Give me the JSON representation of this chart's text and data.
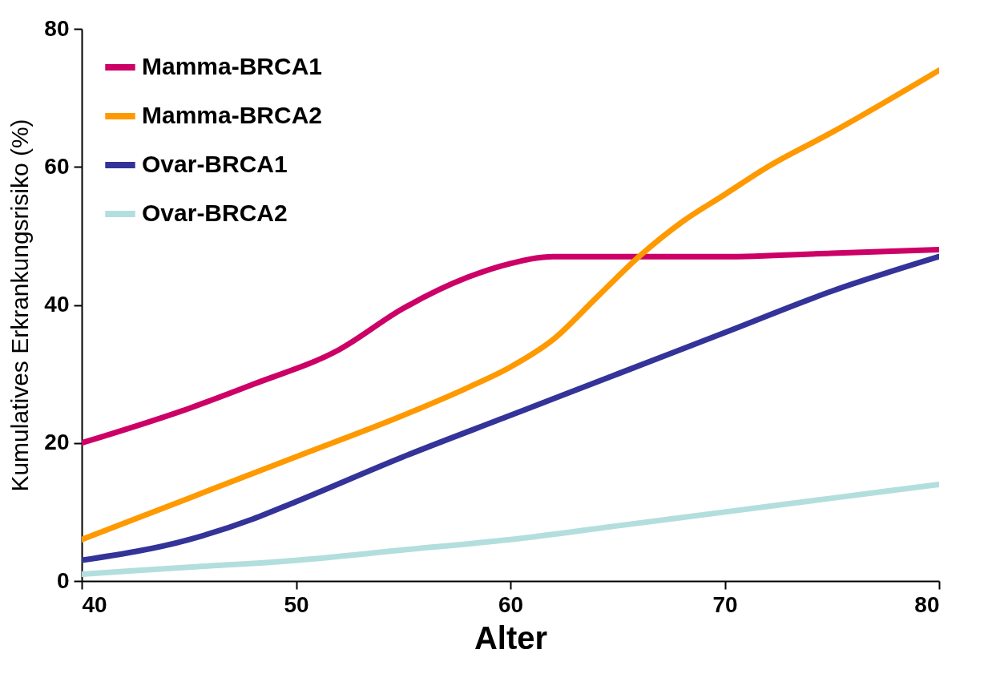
{
  "chart_data": {
    "type": "line",
    "xlabel": "Alter",
    "ylabel": "Kumulatives Erkrankungsrisiko (%)",
    "xlim": [
      40,
      80
    ],
    "xticks": [
      40,
      50,
      60,
      70,
      80
    ],
    "ylim": [
      0,
      80
    ],
    "yticks": [
      0,
      20,
      40,
      60,
      80
    ],
    "grid": false,
    "legend": "top left",
    "marker": "none",
    "line_style": "solid",
    "series": [
      {
        "name": "Mamma-BRCA1",
        "color": "#cc0066",
        "x": [
          40,
          45,
          48,
          52,
          55,
          58,
          60,
          62,
          65,
          70,
          75,
          80
        ],
        "values": [
          20,
          25,
          28.5,
          33.5,
          39.5,
          44,
          46,
          47,
          47,
          47,
          47.5,
          48
        ]
      },
      {
        "name": "Mamma-BRCA2",
        "color": "#ff9900",
        "x": [
          40,
          45,
          50,
          55,
          58,
          60,
          62,
          64,
          66,
          68,
          70,
          72,
          75,
          80
        ],
        "values": [
          6,
          12,
          18,
          24,
          28,
          31,
          35,
          41,
          47,
          52,
          56,
          60,
          65,
          74
        ]
      },
      {
        "name": "Ovar-BRCA1",
        "color": "#333399",
        "x": [
          40,
          45,
          48,
          50,
          55,
          60,
          65,
          70,
          75,
          80
        ],
        "values": [
          3,
          6,
          9,
          11.5,
          18,
          24,
          30,
          36,
          42,
          47
        ]
      },
      {
        "name": "Ovar-BRCA2",
        "color": "#b3dede",
        "x": [
          40,
          45,
          50,
          55,
          60,
          65,
          70,
          75,
          80
        ],
        "values": [
          1,
          2,
          3,
          4.5,
          6,
          8,
          10,
          12,
          14
        ]
      }
    ]
  }
}
